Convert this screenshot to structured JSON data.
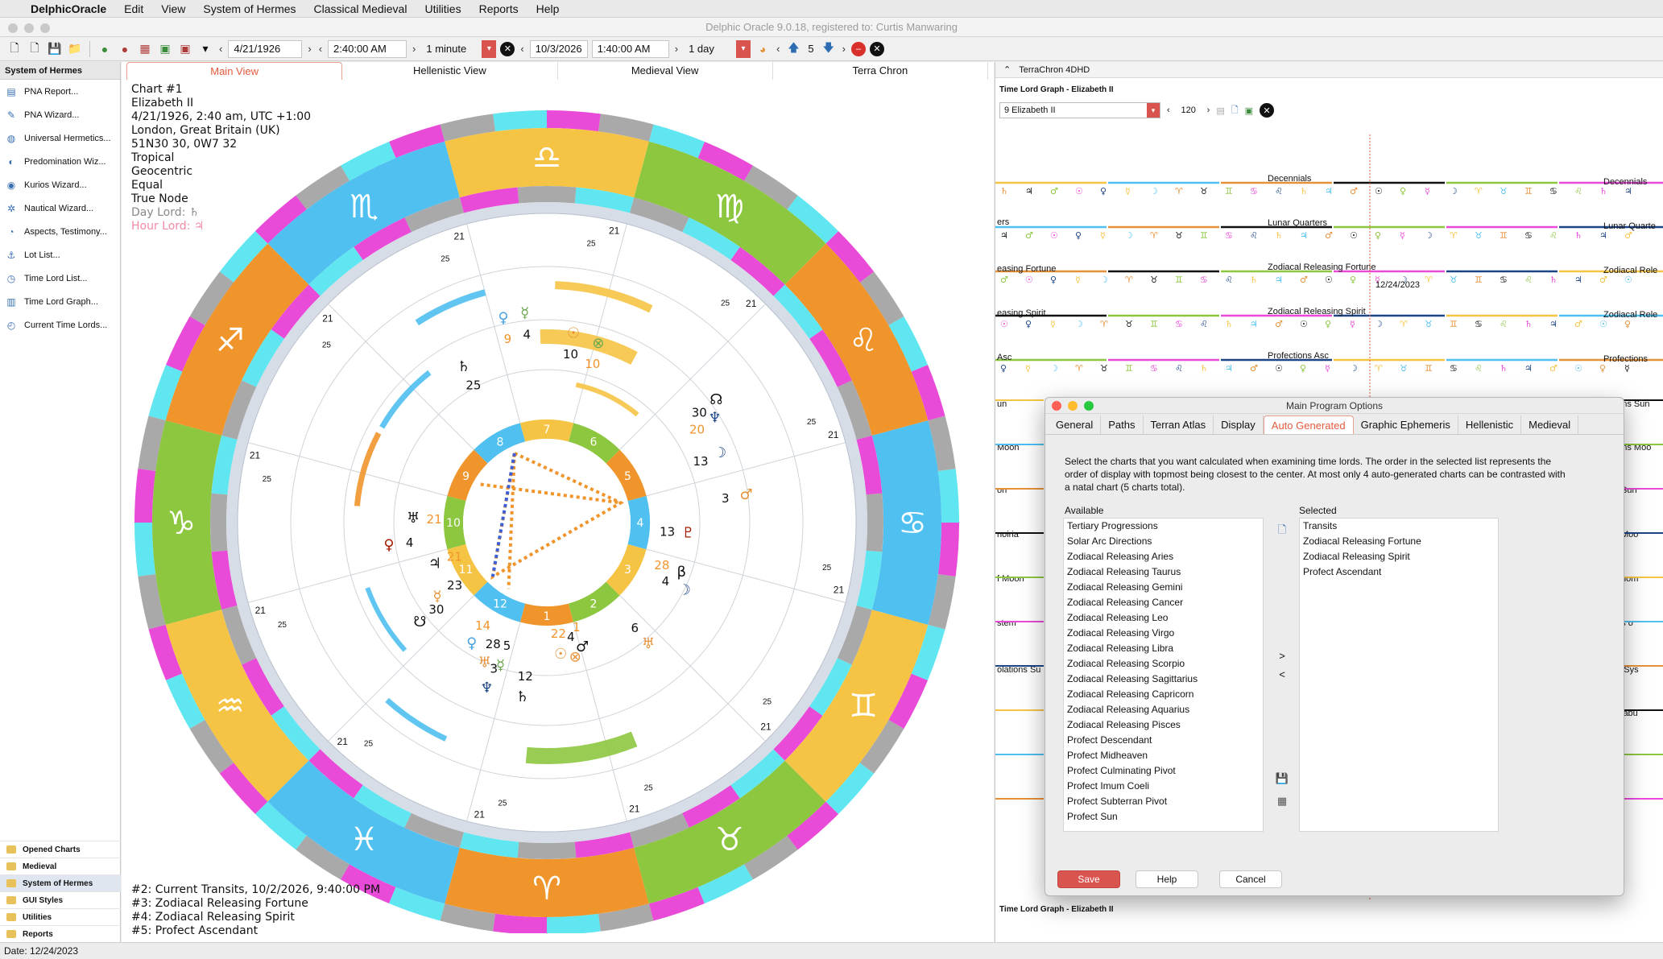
{
  "menubar": {
    "app": "DelphicOracle",
    "items": [
      "Edit",
      "View",
      "System of Hermes",
      "Classical Medieval",
      "Utilities",
      "Reports",
      "Help"
    ]
  },
  "window_title": "Delphic Oracle 9.0.18, registered to: Curtis Manwaring",
  "toolbar": {
    "date1": "4/21/1926",
    "time1": "2:40:00 AM",
    "step1": "1 minute",
    "date2": "10/3/2026",
    "time2": "1:40:00 AM",
    "step2": "1 day",
    "count": "5"
  },
  "sidebar": {
    "header": "System of Hermes",
    "items": [
      {
        "label": "PNA Report...",
        "icon": "report-icon"
      },
      {
        "label": "PNA Wizard...",
        "icon": "wizard-icon"
      },
      {
        "label": "Universal Hermetics...",
        "icon": "globe-icon"
      },
      {
        "label": "Predomination Wiz...",
        "icon": "moon-icon"
      },
      {
        "label": "Kurios Wizard...",
        "icon": "eye-icon"
      },
      {
        "label": "Nautical Wizard...",
        "icon": "ship-wheel-icon"
      },
      {
        "label": "Aspects, Testimony...",
        "icon": "aspect-icon"
      },
      {
        "label": "Lot List...",
        "icon": "anchor-icon"
      },
      {
        "label": "Time Lord List...",
        "icon": "clock-icon"
      },
      {
        "label": "Time Lord Graph...",
        "icon": "graph-icon"
      },
      {
        "label": "Current Time Lords...",
        "icon": "timer-icon"
      }
    ],
    "categories": [
      "Opened Charts",
      "Medieval",
      "System of Hermes",
      "GUI Styles",
      "Utilities",
      "Reports"
    ],
    "selected_category": "System of Hermes"
  },
  "center": {
    "tabs": [
      "Main View",
      "Hellenistic View",
      "Medieval View",
      "Terra Chron"
    ],
    "active_tab": "Main View",
    "chart_info": {
      "line1": "Chart #1",
      "line2": "Elizabeth II",
      "line3": "4/21/1926, 2:40 am, UTC +1:00",
      "line4": "London, Great Britain (UK)",
      "line5": "51N30 30, 0W7 32",
      "line6": "Tropical",
      "line7": "Geocentric",
      "line8": "Equal",
      "line9": "True Node",
      "day_lord": "Day Lord: ♄",
      "hour_lord": "Hour Lord: ♃"
    },
    "chart_list": {
      "c2": "#2: Current Transits, 10/2/2026, 9:40:00 PM",
      "c3": "#3: Zodiacal Releasing Fortune",
      "c4": "#4: Zodiacal Releasing Spirit",
      "c5": "#5: Profect Ascendant"
    },
    "wheel": {
      "signs_glyphs": [
        "♈",
        "♉",
        "♊",
        "♋",
        "♌",
        "♍",
        "♎",
        "♏",
        "♐",
        "♑",
        "♒",
        "♓"
      ],
      "house_numbers": [
        "1",
        "2",
        "3",
        "4",
        "5",
        "6",
        "7",
        "8",
        "9",
        "10",
        "11",
        "12"
      ],
      "degree_labels": [
        "21",
        "25"
      ],
      "planet_labels": [
        {
          "glyph": "♀",
          "deg": "9",
          "color": "#4aa3df"
        },
        {
          "glyph": "☿",
          "deg": "4",
          "color": "#6aa84f"
        },
        {
          "glyph": "☉",
          "deg": "10",
          "color": "#e69138"
        },
        {
          "glyph": "⊗",
          "deg": "10",
          "color": "#6aa84f"
        },
        {
          "glyph": "♄",
          "deg": "25",
          "color": "#111"
        },
        {
          "glyph": "☊",
          "deg": "30",
          "color": "#111"
        },
        {
          "glyph": "♆",
          "deg": "20",
          "color": "#1c4587"
        },
        {
          "glyph": "☽",
          "deg": "13",
          "color": "#1c4587"
        },
        {
          "glyph": "♂",
          "deg": "3",
          "color": "#e69138"
        },
        {
          "glyph": "♅",
          "deg": "21",
          "color": "#111"
        },
        {
          "glyph": "♀",
          "deg": "4",
          "color": "#a61c00"
        },
        {
          "glyph": "♇",
          "deg": "13",
          "color": "#a61c00"
        },
        {
          "glyph": "♃",
          "deg": "21",
          "color": "#111"
        },
        {
          "glyph": "☿",
          "deg": "23",
          "color": "#e69138"
        },
        {
          "glyph": "☋",
          "deg": "30",
          "color": "#111"
        },
        {
          "glyph": "♀",
          "deg": "14",
          "color": "#4aa3df"
        },
        {
          "glyph": "♅",
          "deg": "28",
          "color": "#e69138"
        },
        {
          "glyph": "☿",
          "deg": "5",
          "color": "#6aa84f"
        },
        {
          "glyph": "☉",
          "deg": "22",
          "color": "#e69138"
        },
        {
          "glyph": "♆",
          "deg": "3",
          "color": "#1c4587"
        },
        {
          "glyph": "♄",
          "deg": "12",
          "color": "#111"
        },
        {
          "glyph": "♂",
          "deg": "1",
          "color": "#111"
        },
        {
          "glyph": "⊗",
          "deg": "4",
          "color": "#e69138"
        },
        {
          "glyph": "♅",
          "deg": "6",
          "color": "#e69138"
        },
        {
          "glyph": "β",
          "deg": "28",
          "color": "#111"
        },
        {
          "glyph": "☽",
          "deg": "4",
          "color": "#1c4587"
        }
      ]
    }
  },
  "right_panel": {
    "header": "TerraChron 4DHD",
    "graph_title": "Time Lord Graph - Elizabeth II",
    "selector": "9 Elizabeth II",
    "zoom": "120",
    "date_marker": "12/24/2023",
    "rows": [
      "Decennials",
      "Lunar Quarters",
      "Zodiacal Releasing Fortune",
      "Zodiacal Releasing Spirit",
      "Profections Asc"
    ],
    "left_labels": [
      "ers",
      "easing Fortune",
      "easing Spirit",
      "Asc",
      "un",
      "Moon",
      "on",
      "noiria",
      "f Moon",
      "stem",
      "olations Su"
    ],
    "right_labels": [
      "Decennials",
      "Lunar Quarte",
      "Zodiacal Rele",
      "Zodiacal Rele",
      "Profections",
      "ections Sun",
      "ections Moo",
      "illus Sun",
      "illus Moo",
      "r Monom",
      "Years o",
      "Year Sys",
      "ummabu"
    ],
    "bottom_title": "Time Lord Graph - Elizabeth II"
  },
  "dialog": {
    "title": "Main Program Options",
    "tabs": [
      "General",
      "Paths",
      "Terran Atlas",
      "Display",
      "Auto Generated",
      "Graphic Ephemeris",
      "Hellenistic",
      "Medieval"
    ],
    "active_tab": "Auto Generated",
    "description": "Select the charts that you want calculated when examining time lords.  The order in the selected list represents the order of display with topmost being closest to the center.  At most only 4 auto-generated charts can be contrasted with a natal chart (5 charts total).",
    "available_label": "Available",
    "selected_label": "Selected",
    "available": [
      "Tertiary Progressions",
      "Solar Arc Directions",
      "Zodiacal Releasing Aries",
      "Zodiacal Releasing Taurus",
      "Zodiacal Releasing Gemini",
      "Zodiacal Releasing Cancer",
      "Zodiacal Releasing Leo",
      "Zodiacal Releasing Virgo",
      "Zodiacal Releasing Libra",
      "Zodiacal Releasing Scorpio",
      "Zodiacal Releasing Sagittarius",
      "Zodiacal Releasing Capricorn",
      "Zodiacal Releasing Aquarius",
      "Zodiacal Releasing Pisces",
      "Profect Descendant",
      "Profect Midheaven",
      "Profect Culminating Pivot",
      "Profect Imum Coeli",
      "Profect Subterran Pivot",
      "Profect Sun"
    ],
    "selected": [
      "Transits",
      "Zodiacal Releasing Fortune",
      "Zodiacal Releasing Spirit",
      "Profect Ascendant"
    ],
    "buttons": {
      "save": "Save",
      "help": "Help",
      "cancel": "Cancel"
    },
    "move_right": ">",
    "move_left": "<"
  },
  "status": "Date: 12/24/2023",
  "colors": {
    "accent": "#e55a3b",
    "orange": "#f0952c",
    "yellow": "#f6c445",
    "green": "#8dc63f",
    "blue": "#4fc0f0",
    "magenta": "#e94bd8",
    "cyan": "#5fe6f0",
    "gray": "#a9a9a9"
  }
}
